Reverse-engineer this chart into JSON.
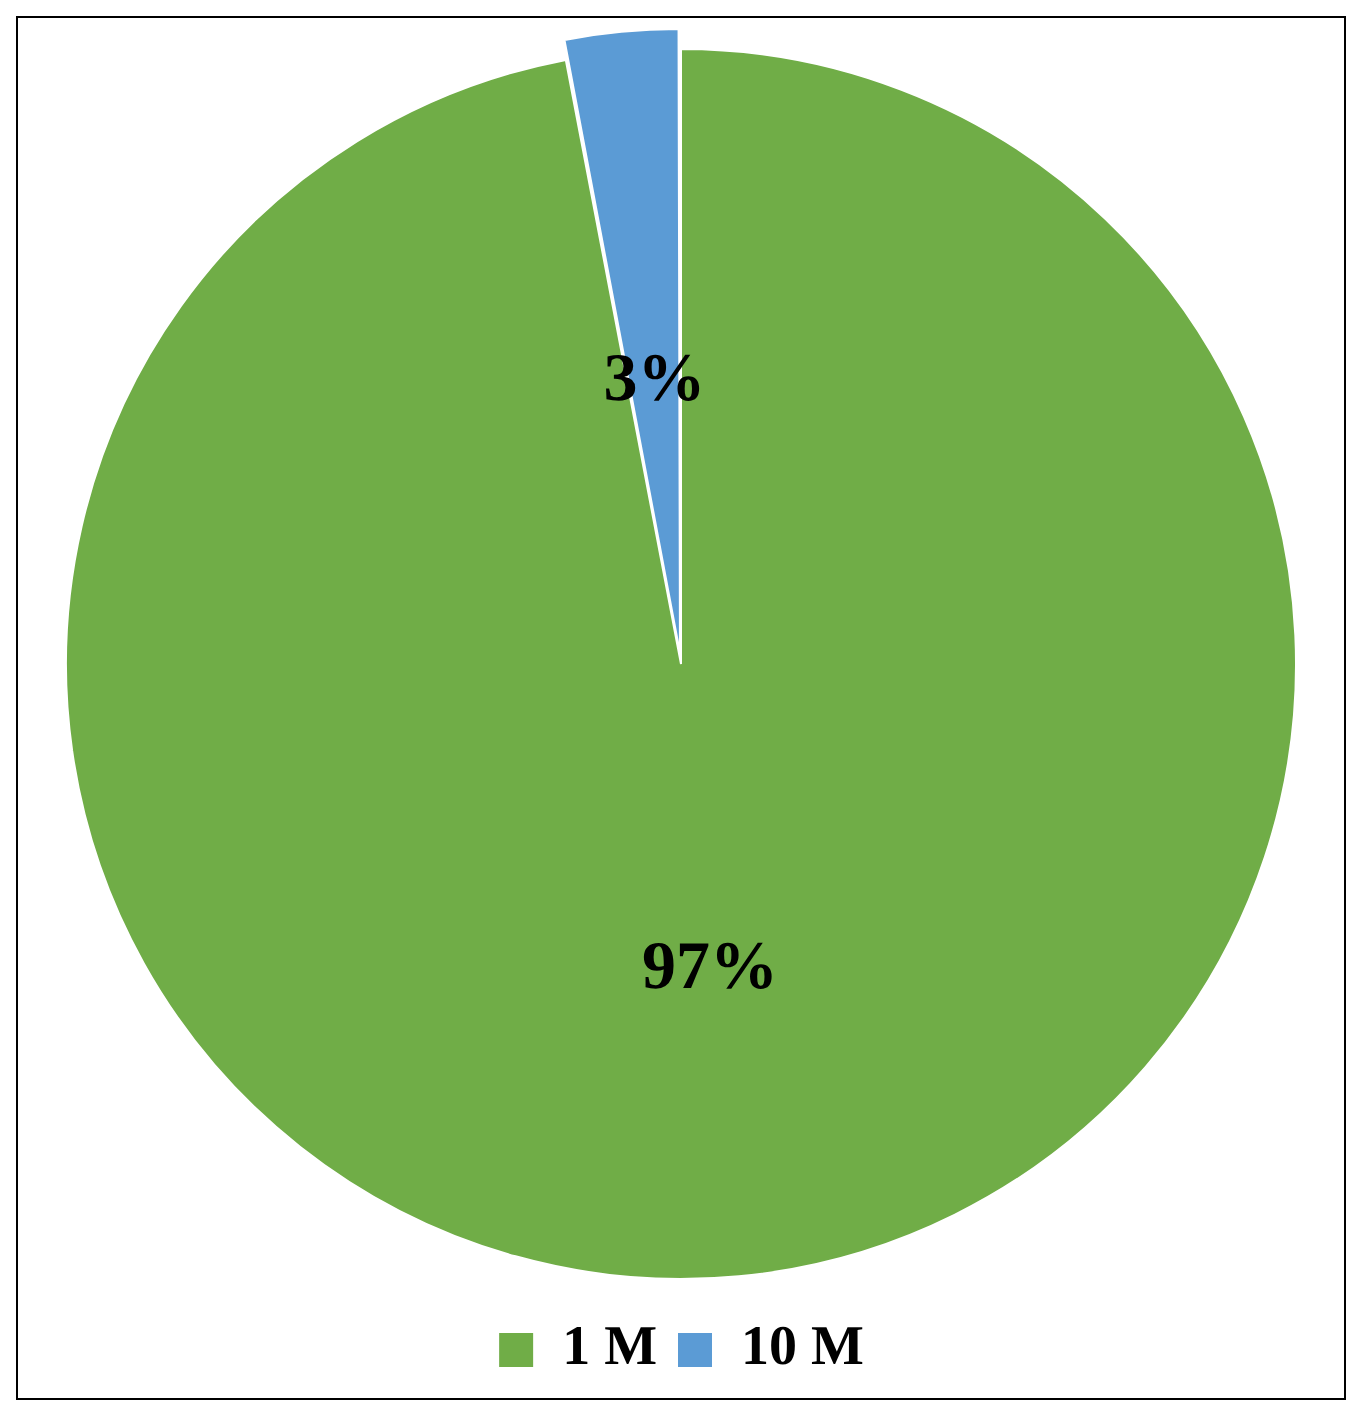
{
  "chart_data": {
    "type": "pie",
    "categories": [
      "1 M",
      "10 M"
    ],
    "values": [
      97,
      3
    ],
    "colors": [
      "#70ad47",
      "#5b9bd5"
    ],
    "value_labels": [
      "97%",
      "3%"
    ],
    "legend": "bottom"
  }
}
